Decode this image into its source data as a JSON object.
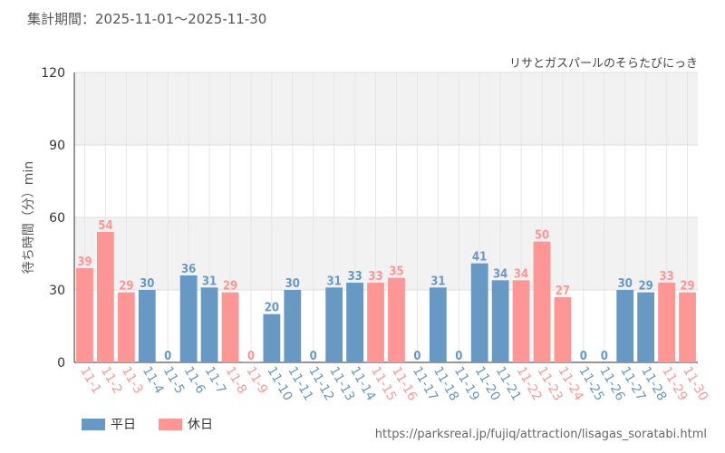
{
  "header": {
    "period_label": "集計期間：2025-11-01～2025-11-30"
  },
  "footer": {
    "source_url": "https://parksreal.jp/fujiq/attraction/lisagas_soratabi.html"
  },
  "colors": {
    "weekday": "#6898c4",
    "holiday": "#ff9696",
    "grid": "#dddddd",
    "band": "#f2f2f2"
  },
  "chart_data": {
    "type": "bar",
    "title": "リサとガスパールのそらたびにっき",
    "xlabel": "",
    "ylabel": "待ち時間（分）min",
    "ylim": [
      0,
      120
    ],
    "yticks": [
      0,
      30,
      60,
      90,
      120
    ],
    "grid": true,
    "legend_position": "bottom-left",
    "categories": [
      "11-1",
      "11-2",
      "11-3",
      "11-4",
      "11-5",
      "11-6",
      "11-7",
      "11-8",
      "11-9",
      "11-10",
      "11-11",
      "11-12",
      "11-13",
      "11-14",
      "11-15",
      "11-16",
      "11-17",
      "11-18",
      "11-19",
      "11-20",
      "11-21",
      "11-22",
      "11-23",
      "11-24",
      "11-25",
      "11-26",
      "11-27",
      "11-28",
      "11-29",
      "11-30"
    ],
    "values": [
      39,
      54,
      29,
      30,
      0,
      36,
      31,
      29,
      0,
      20,
      30,
      0,
      31,
      33,
      33,
      35,
      0,
      31,
      0,
      41,
      34,
      34,
      50,
      27,
      0,
      0,
      30,
      29,
      33,
      29
    ],
    "day_type": [
      "休日",
      "休日",
      "休日",
      "平日",
      "平日",
      "平日",
      "平日",
      "休日",
      "休日",
      "平日",
      "平日",
      "平日",
      "平日",
      "平日",
      "休日",
      "休日",
      "平日",
      "平日",
      "平日",
      "平日",
      "平日",
      "休日",
      "休日",
      "休日",
      "平日",
      "平日",
      "平日",
      "平日",
      "休日",
      "休日"
    ],
    "series": [
      {
        "name": "平日",
        "color": "#6898c4"
      },
      {
        "name": "休日",
        "color": "#ff9696"
      }
    ]
  }
}
